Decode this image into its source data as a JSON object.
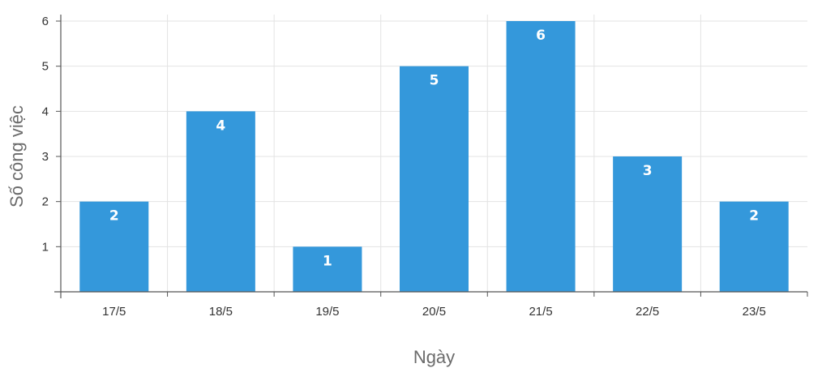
{
  "chart_data": {
    "type": "bar",
    "categories": [
      "17/5",
      "18/5",
      "19/5",
      "20/5",
      "21/5",
      "22/5",
      "23/5"
    ],
    "values": [
      2,
      4,
      1,
      5,
      6,
      3,
      2
    ],
    "title": "",
    "xlabel": "Ngày",
    "ylabel": "Số công việc",
    "ylim": [
      0,
      6
    ],
    "yticks": [
      1,
      2,
      3,
      4,
      5,
      6
    ],
    "grid": true,
    "data_labels": true,
    "legend": "none",
    "bar_color": "#3498db"
  }
}
